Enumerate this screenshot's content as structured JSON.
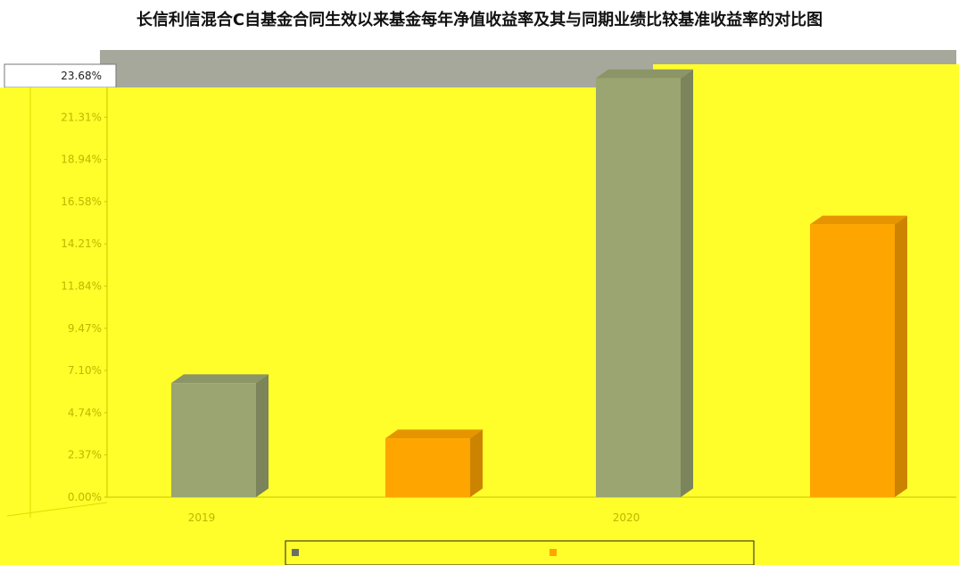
{
  "chart_data": {
    "type": "bar",
    "title": "长信利信混合C自基金合同生效以来基金每年净值收益率及其与同期业绩比较基准收益率的对比图",
    "xlabel": "",
    "ylabel": "",
    "ylim": [
      0,
      23.68
    ],
    "y_ticks": [
      "0.00%",
      "2.37%",
      "4.74%",
      "7.10%",
      "9.47%",
      "11.84%",
      "14.21%",
      "16.58%",
      "18.94%",
      "21.31%",
      "23.68%"
    ],
    "categories": [
      "2019",
      "2020"
    ],
    "series": [
      {
        "values": [
          6.4,
          23.5
        ],
        "color": "#9aa572"
      },
      {
        "values": [
          3.3,
          15.3
        ],
        "color": "#ffa500"
      }
    ],
    "legend_position": "bottom-center",
    "grid": false
  },
  "colors": {
    "plot_background": "#fffd2a",
    "top_band": "#a6a89c"
  }
}
